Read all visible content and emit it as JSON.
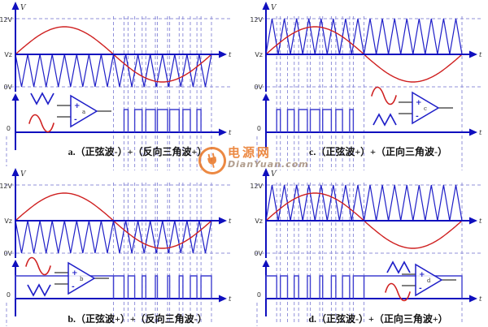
{
  "axis_labels": {
    "v": "V",
    "t": "t",
    "top": "12V",
    "mid": "Vz",
    "bottom": "0V",
    "zero": "0"
  },
  "colors": {
    "axis_blue": "#0f0fbe",
    "triangle_blue": "#1f1fc8",
    "pulse_blue": "#3f3fd0",
    "sine_red": "#cf2020",
    "dashed_line": "#9191da",
    "label_text": "#333333",
    "caption_text": "#111111",
    "watermark_orange": "#e8701a"
  },
  "waveform_info": {
    "sine_cycles": 1,
    "triangle_cycles": 16,
    "levels": [
      "0V",
      "Vz",
      "12V"
    ],
    "description": "PWM generation: sine wave compared with triangle carrier by comparator"
  },
  "panels": [
    {
      "id": "a",
      "position": "top-left",
      "letter": "a",
      "caption": "a.（正弦波-）+（反向三角波+）",
      "triangle": "down",
      "plus_input": "triangle",
      "minus_input": "sine",
      "output_pulses_half": "second"
    },
    {
      "id": "c",
      "position": "top-right",
      "letter": "c",
      "caption": "c.（正弦波+）+（正向三角波-）",
      "triangle": "up",
      "plus_input": "sine",
      "minus_input": "triangle",
      "output_pulses_half": "first"
    },
    {
      "id": "b",
      "position": "bottom-left",
      "letter": "b",
      "caption": "b.（正弦波+）+（反向三角波-）",
      "triangle": "down",
      "plus_input": "sine",
      "minus_input": "triangle",
      "output_pulses_half": "second"
    },
    {
      "id": "d",
      "position": "bottom-right",
      "letter": "d",
      "caption": "d.（正弦波-）+（正向三角波+）",
      "triangle": "up",
      "plus_input": "triangle",
      "minus_input": "sine",
      "output_pulses_half": "first"
    }
  ],
  "watermark": {
    "brand": "电源网",
    "domain": "DianYuan.com"
  }
}
